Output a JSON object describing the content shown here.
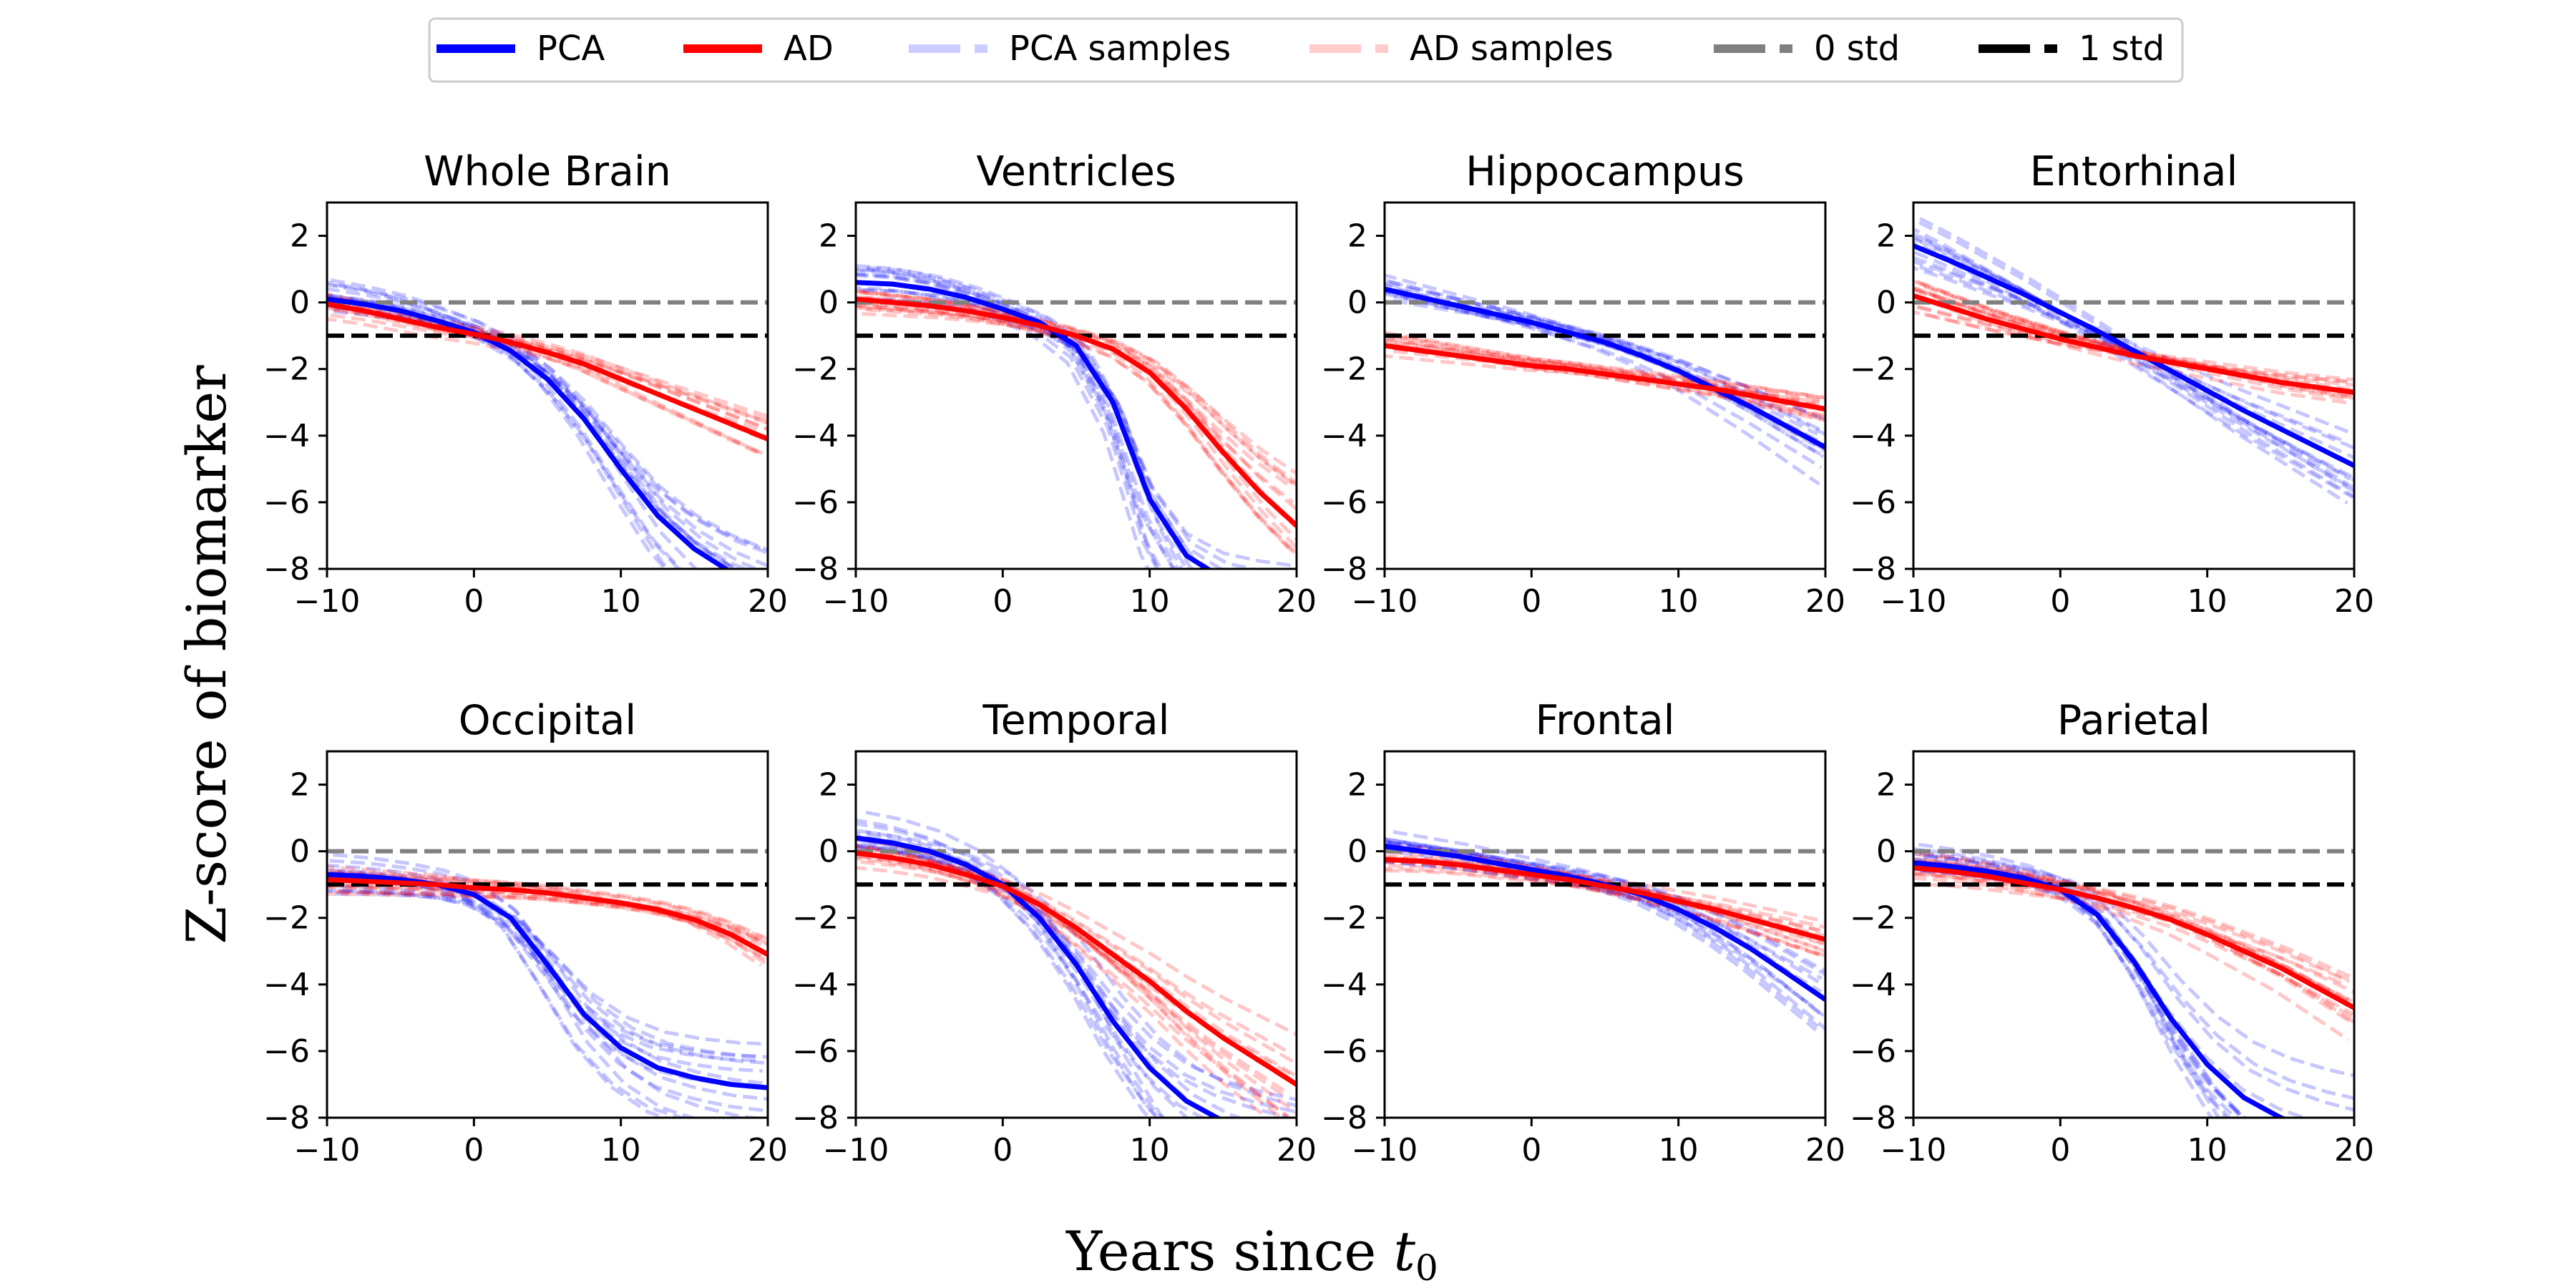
{
  "chart_data": {
    "type": "line",
    "xlabel_text": "Years since ",
    "xlabel_sub": "0",
    "xlabel_var": "t",
    "ylabel": "Z-score of biomarker",
    "xlim": [
      -10,
      20
    ],
    "ylim": [
      -8,
      3
    ],
    "xticks": [
      -10,
      0,
      10,
      20
    ],
    "yticks": [
      2,
      0,
      -2,
      -4,
      -6,
      -8
    ],
    "xtick_labels": [
      "−10",
      "0",
      "10",
      "20"
    ],
    "ytick_labels": [
      "2",
      "0",
      "−2",
      "−4",
      "−6",
      "−8"
    ],
    "grid": false,
    "legend_position": "top-center",
    "legend": [
      {
        "label": "PCA",
        "color": "#0000ff",
        "style": "solid"
      },
      {
        "label": "AD",
        "color": "#ff0000",
        "style": "solid"
      },
      {
        "label": "PCA samples",
        "color": "#0000ff",
        "style": "dashed",
        "alpha": 0.2
      },
      {
        "label": "AD samples",
        "color": "#ff0000",
        "style": "dashed",
        "alpha": 0.2
      },
      {
        "label": "0 std",
        "color": "#808080",
        "style": "dashed"
      },
      {
        "label": "1 std",
        "color": "#000000",
        "style": "dashed"
      }
    ],
    "reference_lines": [
      {
        "name": "0 std",
        "y": 0,
        "color": "#808080"
      },
      {
        "name": "1 std",
        "y": -1,
        "color": "#000000"
      }
    ],
    "x": [
      -10,
      -7.5,
      -5,
      -2.5,
      0,
      2.5,
      5,
      7.5,
      10,
      12.5,
      15,
      17.5,
      20
    ],
    "panels": [
      {
        "title": "Whole Brain",
        "series": [
          {
            "name": "PCA",
            "values": [
              0.1,
              -0.05,
              -0.25,
              -0.55,
              -0.9,
              -1.45,
              -2.3,
              -3.5,
              -5.0,
              -6.4,
              -7.4,
              -8.1,
              -8.6
            ]
          },
          {
            "name": "AD",
            "values": [
              -0.05,
              -0.25,
              -0.5,
              -0.75,
              -0.95,
              -1.2,
              -1.5,
              -1.85,
              -2.3,
              -2.75,
              -3.2,
              -3.65,
              -4.1
            ]
          }
        ],
        "pca_sample_spread": 0.9,
        "ad_sample_spread": 0.7
      },
      {
        "title": "Ventricles",
        "series": [
          {
            "name": "PCA",
            "values": [
              0.6,
              0.55,
              0.4,
              0.15,
              -0.2,
              -0.6,
              -1.3,
              -3.0,
              -5.9,
              -7.6,
              -8.3,
              -8.6,
              -8.8
            ]
          },
          {
            "name": "AD",
            "values": [
              0.1,
              0.0,
              -0.1,
              -0.25,
              -0.45,
              -0.7,
              -1.0,
              -1.4,
              -2.1,
              -3.2,
              -4.5,
              -5.7,
              -6.7
            ]
          }
        ],
        "pca_sample_spread": 0.9,
        "ad_sample_spread": 0.9
      },
      {
        "title": "Hippocampus",
        "series": [
          {
            "name": "PCA",
            "values": [
              0.4,
              0.15,
              -0.1,
              -0.35,
              -0.6,
              -0.9,
              -1.2,
              -1.6,
              -2.05,
              -2.6,
              -3.15,
              -3.75,
              -4.35
            ]
          },
          {
            "name": "AD",
            "values": [
              -1.3,
              -1.45,
              -1.6,
              -1.75,
              -1.9,
              -2.0,
              -2.15,
              -2.3,
              -2.45,
              -2.6,
              -2.8,
              -3.0,
              -3.2
            ]
          }
        ],
        "pca_sample_spread": 0.8,
        "ad_sample_spread": 0.6
      },
      {
        "title": "Entorhinal",
        "series": [
          {
            "name": "PCA",
            "values": [
              1.7,
              1.25,
              0.75,
              0.25,
              -0.3,
              -0.85,
              -1.45,
              -2.05,
              -2.65,
              -3.25,
              -3.8,
              -4.35,
              -4.9
            ]
          },
          {
            "name": "AD",
            "values": [
              0.2,
              -0.15,
              -0.5,
              -0.8,
              -1.1,
              -1.35,
              -1.6,
              -1.8,
              -2.0,
              -2.2,
              -2.4,
              -2.55,
              -2.7
            ]
          }
        ],
        "pca_sample_spread": 0.9,
        "ad_sample_spread": 0.6
      },
      {
        "title": "Occipital",
        "series": [
          {
            "name": "PCA",
            "values": [
              -0.7,
              -0.75,
              -0.85,
              -1.0,
              -1.3,
              -2.0,
              -3.4,
              -4.9,
              -5.9,
              -6.5,
              -6.8,
              -7.0,
              -7.1
            ]
          },
          {
            "name": "AD",
            "values": [
              -0.85,
              -0.9,
              -0.95,
              -1.0,
              -1.1,
              -1.15,
              -1.25,
              -1.4,
              -1.55,
              -1.75,
              -2.05,
              -2.5,
              -3.1
            ]
          }
        ],
        "pca_sample_spread": 1.0,
        "ad_sample_spread": 0.8
      },
      {
        "title": "Temporal",
        "series": [
          {
            "name": "PCA",
            "values": [
              0.4,
              0.25,
              0.0,
              -0.4,
              -1.0,
              -2.0,
              -3.4,
              -5.1,
              -6.5,
              -7.5,
              -8.1,
              -8.5,
              -8.8
            ]
          },
          {
            "name": "AD",
            "values": [
              -0.05,
              -0.2,
              -0.4,
              -0.7,
              -1.05,
              -1.6,
              -2.3,
              -3.1,
              -3.9,
              -4.8,
              -5.6,
              -6.3,
              -7.0
            ]
          }
        ],
        "pca_sample_spread": 0.9,
        "ad_sample_spread": 0.8
      },
      {
        "title": "Frontal",
        "series": [
          {
            "name": "PCA",
            "values": [
              0.15,
              0.0,
              -0.15,
              -0.35,
              -0.55,
              -0.75,
              -1.0,
              -1.3,
              -1.75,
              -2.3,
              -2.95,
              -3.7,
              -4.45
            ]
          },
          {
            "name": "AD",
            "values": [
              -0.25,
              -0.3,
              -0.4,
              -0.55,
              -0.7,
              -0.85,
              -1.05,
              -1.25,
              -1.5,
              -1.75,
              -2.05,
              -2.35,
              -2.65
            ]
          }
        ],
        "pca_sample_spread": 0.8,
        "ad_sample_spread": 0.6
      },
      {
        "title": "Parietal",
        "series": [
          {
            "name": "PCA",
            "values": [
              -0.35,
              -0.45,
              -0.6,
              -0.8,
              -1.15,
              -1.9,
              -3.3,
              -5.0,
              -6.4,
              -7.4,
              -8.0,
              -8.4,
              -8.7
            ]
          },
          {
            "name": "AD",
            "values": [
              -0.5,
              -0.6,
              -0.75,
              -0.95,
              -1.15,
              -1.4,
              -1.7,
              -2.05,
              -2.5,
              -3.0,
              -3.5,
              -4.1,
              -4.7
            ]
          }
        ],
        "pca_sample_spread": 0.9,
        "ad_sample_spread": 0.8
      }
    ]
  }
}
